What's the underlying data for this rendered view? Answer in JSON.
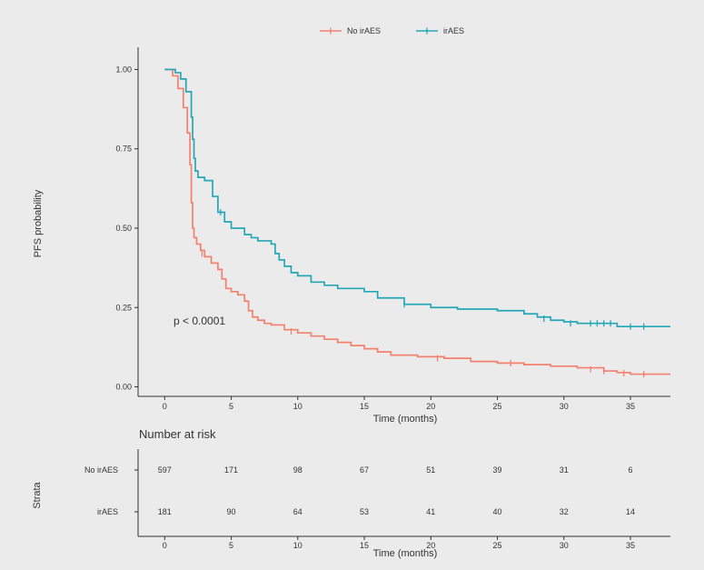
{
  "chart_data": [
    {
      "type": "line",
      "step": true,
      "xlabel": "Time (months)",
      "ylabel": "PFS probability",
      "xlim": [
        -2,
        38
      ],
      "ylim": [
        -0.03,
        1.07
      ],
      "xticks": [
        0,
        5,
        10,
        15,
        20,
        25,
        30,
        35
      ],
      "yticks": [
        0,
        0.25,
        0.5,
        0.75,
        1.0
      ],
      "ytick_labels": [
        "0.00",
        "0.25",
        "0.50",
        "0.75",
        "1.00"
      ],
      "grid": false,
      "legend": "top-center",
      "annotation": "p < 0.0001",
      "series": [
        {
          "name": "No irAES",
          "color": "#f4806e",
          "x": [
            0,
            0.6,
            1.0,
            1.4,
            1.7,
            1.9,
            2.0,
            2.1,
            2.2,
            2.4,
            2.7,
            3.0,
            3.5,
            4.0,
            4.3,
            4.6,
            5.0,
            5.5,
            6.0,
            6.3,
            6.6,
            7.0,
            7.5,
            8.0,
            9.0,
            10.0,
            11.0,
            12.0,
            13.0,
            14.0,
            15.0,
            16.0,
            17.0,
            19.0,
            21.0,
            23.0,
            25.0,
            27.0,
            29.0,
            31.0,
            33.0,
            34.0,
            35.0,
            38.0
          ],
          "y": [
            1.0,
            0.98,
            0.94,
            0.88,
            0.8,
            0.7,
            0.58,
            0.5,
            0.47,
            0.45,
            0.43,
            0.41,
            0.39,
            0.37,
            0.34,
            0.31,
            0.3,
            0.29,
            0.27,
            0.24,
            0.22,
            0.21,
            0.2,
            0.195,
            0.18,
            0.17,
            0.16,
            0.15,
            0.14,
            0.13,
            0.12,
            0.11,
            0.1,
            0.095,
            0.09,
            0.08,
            0.075,
            0.07,
            0.065,
            0.06,
            0.05,
            0.045,
            0.04,
            0.04
          ],
          "censors": [
            [
              2.8,
              0.42
            ],
            [
              9.5,
              0.175
            ],
            [
              20.5,
              0.09
            ],
            [
              26.0,
              0.075
            ],
            [
              32.0,
              0.055
            ],
            [
              33.0,
              0.05
            ],
            [
              34.5,
              0.043
            ],
            [
              36.0,
              0.04
            ]
          ]
        },
        {
          "name": "irAES",
          "color": "#24a8b6",
          "x": [
            0,
            0.8,
            1.2,
            1.6,
            2.0,
            2.1,
            2.2,
            2.3,
            2.5,
            3.0,
            3.6,
            4.0,
            4.5,
            5.0,
            6.0,
            6.5,
            7.0,
            8.0,
            8.3,
            8.6,
            9.0,
            9.5,
            10.0,
            11.0,
            12.0,
            13.0,
            15.0,
            16.0,
            18.0,
            20.0,
            22.0,
            25.0,
            27.0,
            28.0,
            29.0,
            30.0,
            31.0,
            33.0,
            34.0,
            38.0
          ],
          "y": [
            1.0,
            0.99,
            0.97,
            0.93,
            0.85,
            0.78,
            0.72,
            0.68,
            0.66,
            0.65,
            0.6,
            0.55,
            0.52,
            0.5,
            0.48,
            0.47,
            0.46,
            0.45,
            0.42,
            0.4,
            0.38,
            0.36,
            0.35,
            0.33,
            0.32,
            0.31,
            0.3,
            0.28,
            0.26,
            0.25,
            0.245,
            0.24,
            0.23,
            0.22,
            0.21,
            0.205,
            0.2,
            0.2,
            0.19,
            0.19
          ],
          "censors": [
            [
              4.2,
              0.55
            ],
            [
              18.0,
              0.26
            ],
            [
              28.5,
              0.215
            ],
            [
              30.5,
              0.2
            ],
            [
              32.0,
              0.2
            ],
            [
              32.5,
              0.2
            ],
            [
              33.0,
              0.2
            ],
            [
              33.5,
              0.2
            ],
            [
              35.0,
              0.19
            ],
            [
              36.0,
              0.19
            ]
          ]
        }
      ]
    },
    {
      "type": "table",
      "title": "Number at risk",
      "ylabel": "Strata",
      "xlabel": "Time (months)",
      "xlim": [
        -2,
        38
      ],
      "time_points": [
        0,
        5,
        10,
        15,
        20,
        25,
        30,
        35
      ],
      "rows": [
        {
          "name": "No irAES",
          "values": [
            "597",
            "171",
            "98",
            "67",
            "51",
            "39",
            "31",
            "6"
          ]
        },
        {
          "name": "irAES",
          "values": [
            "181",
            "90",
            "64",
            "53",
            "41",
            "40",
            "32",
            "14"
          ]
        }
      ]
    }
  ]
}
